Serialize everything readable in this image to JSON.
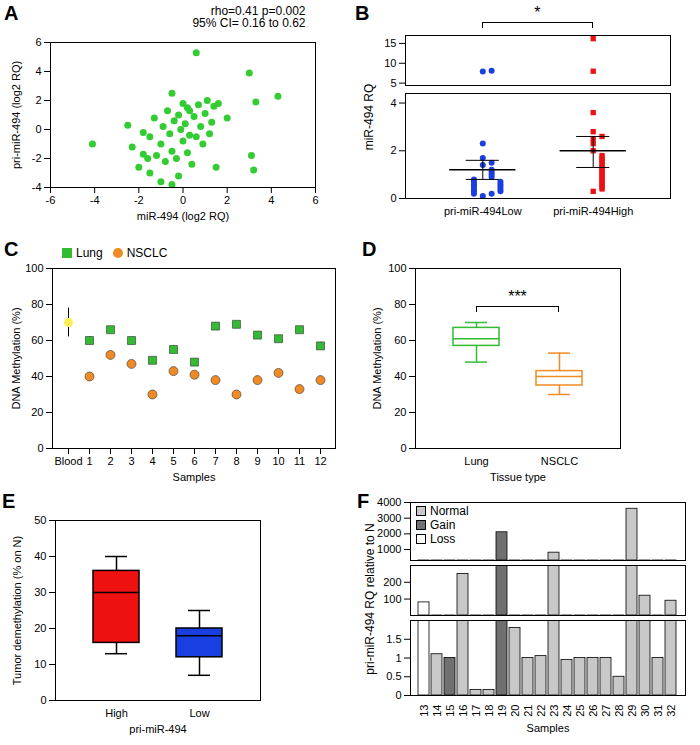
{
  "chart_data": [
    {
      "panel": "A",
      "type": "scatter",
      "annotations": [
        "rho=0.41 p=0.002",
        "95% CI= 0.16 to 0.62"
      ],
      "x_label": "miR-494 (log2 RQ)",
      "y_label": "pri-miR-494 (log2 RQ)",
      "xlim": [
        -6,
        6
      ],
      "xticks": [
        -6,
        -4,
        -2,
        0,
        2,
        4,
        6
      ],
      "ylim": [
        -4,
        6
      ],
      "yticks": [
        -4,
        -2,
        0,
        2,
        4,
        6
      ],
      "color": "#33cc33",
      "marker": "circle",
      "x": [
        -4.1,
        -2.5,
        -2.3,
        -2.0,
        -1.8,
        -1.6,
        -1.5,
        -1.5,
        -1.3,
        -1.2,
        -1.0,
        -1.0,
        -0.9,
        -0.8,
        -0.7,
        -0.6,
        -0.5,
        -0.5,
        -0.4,
        -0.3,
        -0.2,
        -0.2,
        -0.1,
        0.0,
        0.0,
        0.1,
        0.2,
        0.3,
        0.3,
        0.4,
        0.5,
        0.6,
        0.6,
        0.7,
        0.8,
        0.9,
        1.0,
        1.1,
        1.2,
        1.3,
        1.4,
        1.5,
        1.6,
        2.0,
        3.0,
        3.1,
        3.2,
        3.3,
        4.3,
        0.2,
        -1.8,
        -0.5
      ],
      "values": [
        -1.0,
        0.3,
        -1.2,
        -2.6,
        -1.7,
        -2.0,
        -0.5,
        -3.0,
        0.8,
        -1.8,
        -3.6,
        -1.0,
        0.2,
        -2.2,
        1.3,
        -0.3,
        2.5,
        -1.5,
        0.6,
        -2.0,
        1.0,
        -3.2,
        0.0,
        1.8,
        -0.8,
        0.4,
        -1.6,
        1.3,
        -0.4,
        -2.4,
        0.9,
        5.3,
        -0.5,
        1.7,
        0.2,
        -1.0,
        1.1,
        2.0,
        -0.3,
        0.5,
        1.6,
        -2.6,
        1.8,
        0.8,
        3.9,
        -1.8,
        -2.8,
        1.9,
        2.3,
        1.5,
        -0.2,
        -3.8
      ]
    },
    {
      "panel": "B",
      "type": "dot_plot",
      "y_label": "miR-494 RQ",
      "annotations": [
        "*"
      ],
      "segments": [
        {
          "ylim": [
            0,
            4.4
          ],
          "yticks": [
            0,
            2,
            4
          ]
        },
        {
          "ylim": [
            4.4,
            17
          ],
          "yticks": [
            5,
            10,
            15
          ]
        }
      ],
      "groups": [
        {
          "category": "pri-miR-494Low",
          "color": "#1a3fe0",
          "marker": "circle",
          "values": [
            0.1,
            0.2,
            0.2,
            0.3,
            0.3,
            0.4,
            0.4,
            0.5,
            0.5,
            0.6,
            0.6,
            0.7,
            0.7,
            0.8,
            0.9,
            1.0,
            1.1,
            1.2,
            1.4,
            1.5,
            1.7,
            2.3,
            7.9,
            8.1
          ],
          "mean": 1.2,
          "error": [
            0.8,
            1.6
          ]
        },
        {
          "category": "pri-miR-494High",
          "color": "#ee1111",
          "marker": "square",
          "values": [
            0.3,
            0.4,
            0.5,
            0.6,
            0.7,
            0.8,
            0.9,
            1.0,
            1.1,
            1.2,
            1.3,
            1.4,
            1.5,
            1.6,
            1.7,
            1.8,
            2.0,
            2.3,
            2.5,
            2.6,
            2.8,
            3.6,
            8.0,
            16.2
          ],
          "mean": 2.0,
          "error": [
            1.3,
            2.6
          ]
        }
      ]
    },
    {
      "panel": "C",
      "type": "scatter",
      "x_label": "Samples",
      "y_label": "DNA Methylation (%)",
      "ylim": [
        0,
        100
      ],
      "yticks": [
        0,
        20,
        40,
        60,
        80,
        100
      ],
      "legend": "top-left",
      "categories": [
        "Blood",
        "1",
        "2",
        "3",
        "4",
        "5",
        "6",
        "7",
        "8",
        "9",
        "10",
        "11",
        "12"
      ],
      "series": [
        {
          "name": "Lung",
          "color": "#33bb33",
          "marker": "square",
          "values": [
            null,
            60,
            66,
            60,
            49,
            55,
            48,
            68,
            69,
            63,
            61,
            66,
            57
          ],
          "errors": [
            null,
            2,
            1.5,
            1.5,
            1.5,
            2,
            1.5,
            2,
            1.5,
            1.5,
            1.5,
            1.5,
            2
          ]
        },
        {
          "name": "NSCLC",
          "color": "#f08a24",
          "marker": "circle",
          "values": [
            null,
            40,
            52,
            47,
            30,
            43,
            41,
            38,
            30,
            38,
            42,
            33,
            38
          ],
          "errors": [
            null,
            1,
            1.5,
            1.5,
            2,
            1.5,
            1.5,
            1.5,
            2,
            1,
            1,
            1.5,
            1
          ]
        }
      ],
      "reference": {
        "category": "Blood",
        "value": 70,
        "error": 8,
        "color": "#ffee55",
        "marker": "circle"
      }
    },
    {
      "panel": "D",
      "type": "box",
      "x_label": "Tissue type",
      "y_label": "DNA Methylation (%)",
      "ylim": [
        0,
        100
      ],
      "yticks": [
        0,
        20,
        40,
        60,
        80,
        100
      ],
      "annotations": [
        "***"
      ],
      "marker": "outline",
      "categories": [
        "Lung",
        "NSCLC"
      ],
      "colors": [
        "#33bb33",
        "#f08a24"
      ],
      "boxes": [
        {
          "min": 48,
          "q1": 57,
          "median": 61,
          "q3": 67,
          "max": 70
        },
        {
          "min": 30,
          "q1": 35,
          "median": 40,
          "q3": 43,
          "max": 53
        }
      ]
    },
    {
      "panel": "E",
      "type": "box",
      "x_label": "pri-miR-494",
      "y_label": "Tumor demethylation (% on N)",
      "ylim": [
        0,
        50
      ],
      "yticks": [
        0,
        10,
        20,
        30,
        40,
        50
      ],
      "marker": "filled",
      "categories": [
        "High",
        "Low"
      ],
      "colors": [
        "#ee1111",
        "#1a3fe0"
      ],
      "boxes": [
        {
          "min": 13,
          "q1": 16,
          "median": 30,
          "q3": 36,
          "max": 40
        },
        {
          "min": 7,
          "q1": 12,
          "median": 18,
          "q3": 20,
          "max": 25
        }
      ]
    },
    {
      "panel": "F",
      "type": "bar",
      "x_label": "Samples",
      "y_label": "pri-miR-494 RQ relative to N",
      "legend": "top-left",
      "categories": [
        "13",
        "14",
        "15",
        "16",
        "17",
        "18",
        "19",
        "20",
        "21",
        "22",
        "23",
        "24",
        "25",
        "26",
        "27",
        "28",
        "29",
        "30",
        "31",
        "32"
      ],
      "segments": [
        {
          "ylim": [
            0,
            2
          ],
          "yticks": [
            0,
            0.5,
            1,
            1.5
          ]
        },
        {
          "ylim": [
            2,
            300
          ],
          "yticks": [
            100,
            200
          ]
        },
        {
          "ylim": [
            300,
            4000
          ],
          "yticks": [
            1000,
            2000,
            3000,
            4000
          ]
        }
      ],
      "series": [
        {
          "name": "Normal",
          "color": "#c8c8c8",
          "values": [
            null,
            1.1,
            null,
            250,
            0.15,
            0.15,
            null,
            1.8,
            1.0,
            1.05,
            800,
            0.95,
            1.0,
            1.0,
            1.0,
            0.5,
            3600,
            120,
            1.0,
            90
          ]
        },
        {
          "name": "Gain",
          "color": "#707070",
          "values": [
            null,
            null,
            1.0,
            null,
            null,
            null,
            2100,
            null,
            null,
            null,
            null,
            null,
            null,
            null,
            null,
            null,
            null,
            null,
            null,
            null
          ]
        },
        {
          "name": "Loss",
          "color": "#ffffff",
          "values": [
            80,
            null,
            null,
            null,
            null,
            null,
            null,
            null,
            null,
            null,
            null,
            null,
            null,
            null,
            null,
            null,
            null,
            null,
            null,
            null
          ]
        }
      ]
    }
  ]
}
